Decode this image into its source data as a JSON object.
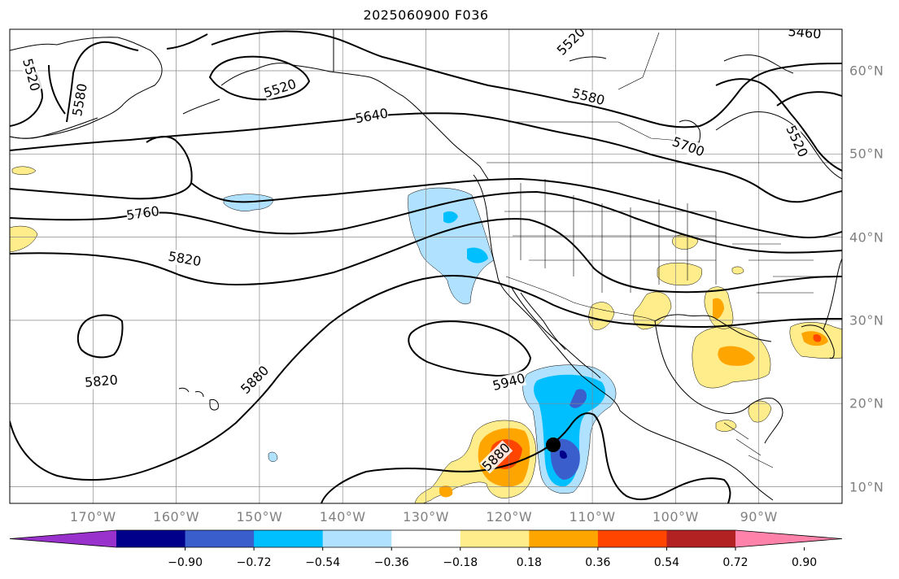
{
  "title": "2025060900 F036",
  "map": {
    "projection": "cylindrical",
    "lon_range": [
      -180,
      -80
    ],
    "lat_range": [
      8,
      65
    ],
    "lon_ticks": [
      {
        "value": -170,
        "label": "170°W"
      },
      {
        "value": -160,
        "label": "160°W"
      },
      {
        "value": -150,
        "label": "150°W"
      },
      {
        "value": -140,
        "label": "140°W"
      },
      {
        "value": -130,
        "label": "130°W"
      },
      {
        "value": -120,
        "label": "120°W"
      },
      {
        "value": -110,
        "label": "110°W"
      },
      {
        "value": -100,
        "label": "100°W"
      },
      {
        "value": -90,
        "label": "90°W"
      }
    ],
    "lat_ticks": [
      {
        "value": 10,
        "label": "10°N"
      },
      {
        "value": 20,
        "label": "20°N"
      },
      {
        "value": 30,
        "label": "30°N"
      },
      {
        "value": 40,
        "label": "40°N"
      },
      {
        "value": 50,
        "label": "50°N"
      },
      {
        "value": 60,
        "label": "60°N"
      }
    ],
    "grid": true,
    "marker": {
      "lon": -115,
      "lat": 15,
      "color": "#000000"
    },
    "contour_labels": [
      {
        "text": "5520",
        "lon": -177.5,
        "lat": 59.5,
        "angle": 75
      },
      {
        "text": "5580",
        "lon": -171.5,
        "lat": 56.5,
        "angle": -80
      },
      {
        "text": "5520",
        "lon": -147.5,
        "lat": 57.8,
        "angle": -18
      },
      {
        "text": "5640",
        "lon": -136.5,
        "lat": 54.5,
        "angle": -10
      },
      {
        "text": "5520",
        "lon": -112.5,
        "lat": 63.5,
        "angle": -45
      },
      {
        "text": "5580",
        "lon": -110.5,
        "lat": 56.8,
        "angle": 14
      },
      {
        "text": "5700",
        "lon": -98.5,
        "lat": 50.8,
        "angle": 20
      },
      {
        "text": "5520",
        "lon": -85.5,
        "lat": 51.5,
        "angle": 65
      },
      {
        "text": "5460",
        "lon": -84.5,
        "lat": 64.5,
        "angle": 5
      },
      {
        "text": "5760",
        "lon": -164,
        "lat": 42.8,
        "angle": -8
      },
      {
        "text": "5820",
        "lon": -159,
        "lat": 37.3,
        "angle": 10
      },
      {
        "text": "5820",
        "lon": -169,
        "lat": 22.6,
        "angle": -5
      },
      {
        "text": "5880",
        "lon": -150.5,
        "lat": 22.8,
        "angle": -45
      },
      {
        "text": "5940",
        "lon": -120,
        "lat": 22.5,
        "angle": -15
      },
      {
        "text": "5880",
        "lon": -121.5,
        "lat": 13.5,
        "angle": -45
      }
    ]
  },
  "colorbar": {
    "colors": [
      "#9932cc",
      "#00008b",
      "#3a5fcd",
      "#00bfff",
      "#b0e2ff",
      "#ffffff",
      "#ffec8b",
      "#ffa500",
      "#ff4500",
      "#b22222",
      "#ff82ab"
    ],
    "ticks": [
      "−0.90",
      "−0.72",
      "−0.54",
      "−0.36",
      "−0.18",
      "0.18",
      "0.36",
      "0.54",
      "0.72",
      "0.90"
    ]
  }
}
